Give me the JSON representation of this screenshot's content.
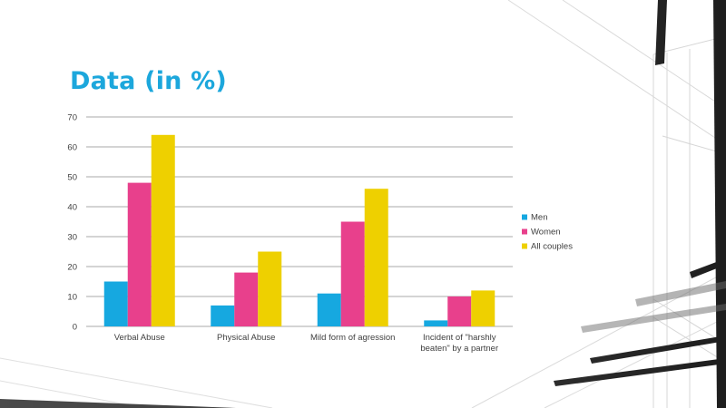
{
  "slide": {
    "title": "Data (in %)"
  },
  "chart_data": {
    "type": "bar",
    "title": "",
    "xlabel": "",
    "ylabel": "",
    "categories": [
      [
        "Verbal Abuse"
      ],
      [
        "Physical Abuse"
      ],
      [
        "Mild form of agression"
      ],
      [
        "Incident of \"harshly",
        "beaten\" by a partner"
      ]
    ],
    "series": [
      {
        "name": "Men",
        "color": "#16a8e0",
        "values": [
          15,
          7,
          11,
          2
        ]
      },
      {
        "name": "Women",
        "color": "#e8408c",
        "values": [
          48,
          18,
          35,
          10
        ]
      },
      {
        "name": "All couples",
        "color": "#eed000",
        "values": [
          64,
          25,
          46,
          12
        ]
      }
    ],
    "ylim": [
      0,
      70
    ],
    "yticks": [
      0,
      10,
      20,
      30,
      40,
      50,
      60,
      70
    ],
    "grid": true,
    "legend_position": "right"
  }
}
